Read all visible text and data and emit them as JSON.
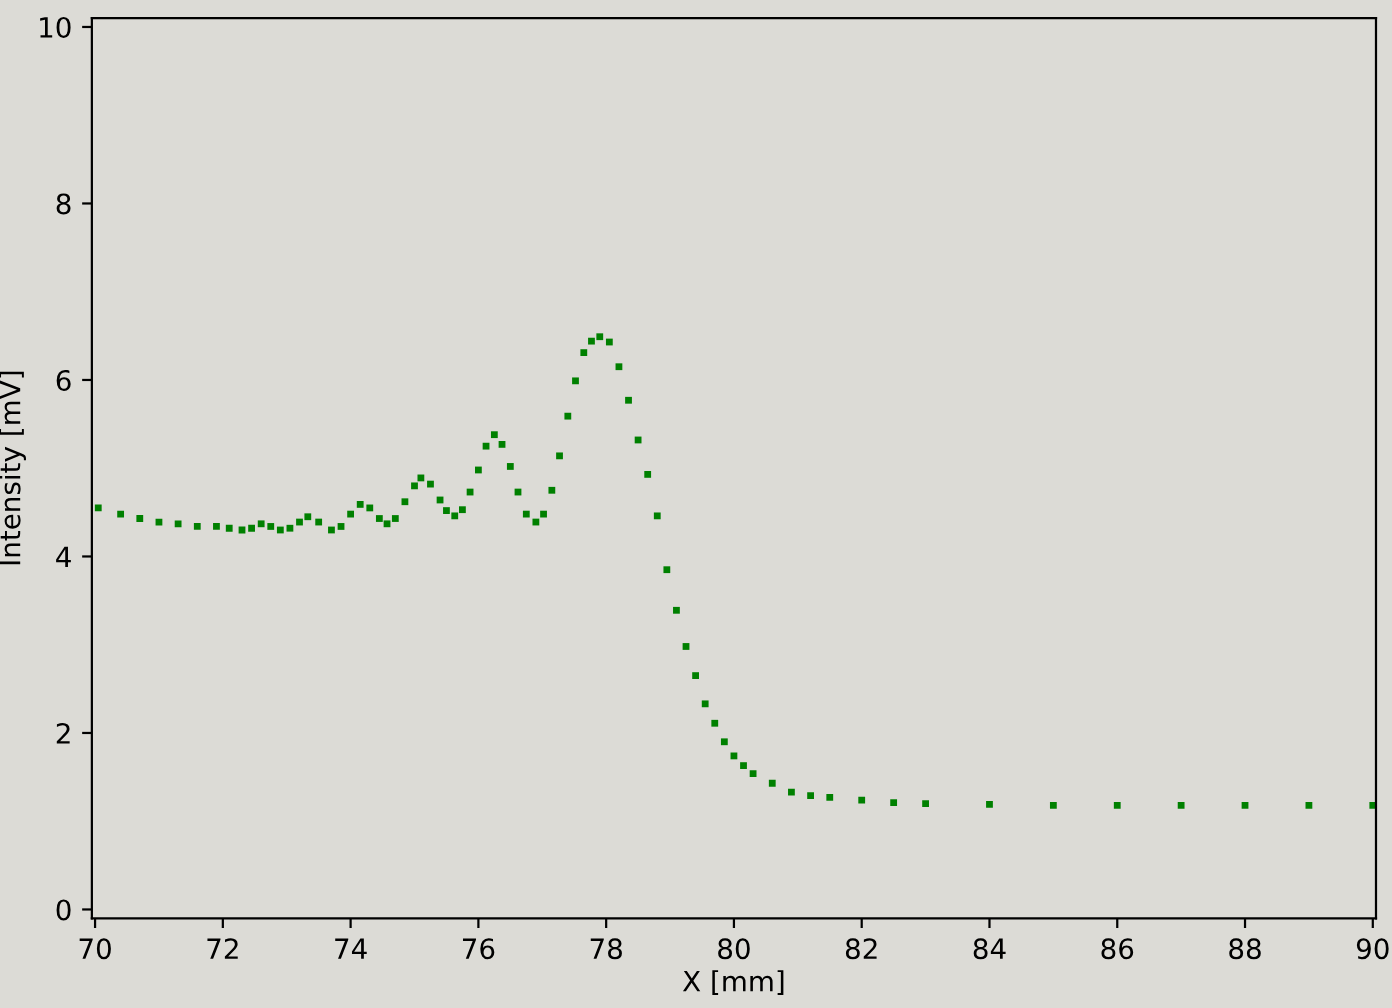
{
  "chart_data": {
    "type": "scatter",
    "xlabel": "X [mm]",
    "ylabel": "Intensity [mV]",
    "xlim": [
      69.95,
      90.05
    ],
    "ylim": [
      -0.1,
      10.1
    ],
    "xticks": [
      70,
      72,
      74,
      76,
      78,
      80,
      82,
      84,
      86,
      88,
      90
    ],
    "yticks": [
      0,
      2,
      4,
      6,
      8,
      10
    ],
    "marker": "square",
    "grid": false,
    "series": [
      {
        "color": "#008000",
        "x": [
          70.05,
          70.4,
          70.7,
          71.0,
          71.3,
          71.6,
          71.9,
          72.1,
          72.3,
          72.45,
          72.6,
          72.75,
          72.9,
          73.05,
          73.2,
          73.33,
          73.5,
          73.7,
          73.85,
          74.0,
          74.15,
          74.3,
          74.45,
          74.57,
          74.7,
          74.85,
          75.0,
          75.1,
          75.25,
          75.4,
          75.5,
          75.63,
          75.75,
          75.87,
          76.0,
          76.12,
          76.25,
          76.37,
          76.5,
          76.62,
          76.75,
          76.9,
          77.02,
          77.15,
          77.27,
          77.4,
          77.52,
          77.65,
          77.77,
          77.9,
          78.05,
          78.2,
          78.35,
          78.5,
          78.65,
          78.8,
          78.95,
          79.1,
          79.25,
          79.4,
          79.55,
          79.7,
          79.85,
          80.0,
          80.15,
          80.3,
          80.6,
          80.9,
          81.2,
          81.5,
          82.0,
          82.5,
          83.0,
          84.0,
          85.0,
          86.0,
          87.0,
          88.0,
          89.0,
          90.0
        ],
        "values": [
          4.55,
          4.48,
          4.43,
          4.39,
          4.37,
          4.34,
          4.34,
          4.32,
          4.3,
          4.32,
          4.37,
          4.34,
          4.3,
          4.32,
          4.39,
          4.45,
          4.39,
          4.3,
          4.34,
          4.48,
          4.59,
          4.55,
          4.43,
          4.37,
          4.43,
          4.62,
          4.8,
          4.89,
          4.82,
          4.64,
          4.52,
          4.46,
          4.53,
          4.73,
          4.98,
          5.25,
          5.38,
          5.27,
          5.02,
          4.73,
          4.48,
          4.39,
          4.48,
          4.75,
          5.14,
          5.59,
          5.99,
          6.31,
          6.44,
          6.49,
          6.43,
          6.15,
          5.77,
          5.32,
          4.93,
          4.46,
          3.85,
          3.39,
          2.98,
          2.65,
          2.33,
          2.11,
          1.9,
          1.74,
          1.63,
          1.54,
          1.43,
          1.33,
          1.29,
          1.27,
          1.24,
          1.21,
          1.2,
          1.19,
          1.18,
          1.18,
          1.18,
          1.18,
          1.18,
          1.18
        ]
      }
    ]
  }
}
